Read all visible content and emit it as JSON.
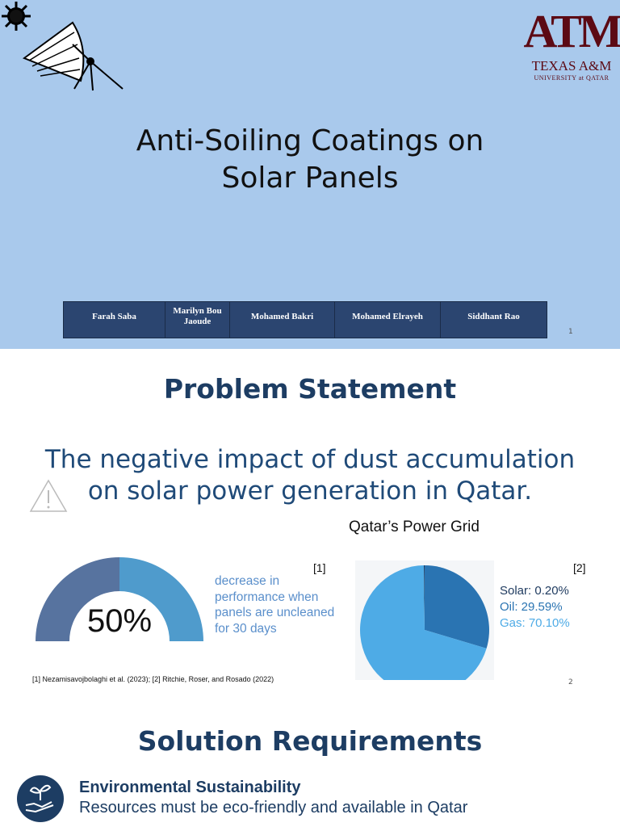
{
  "slide1": {
    "title_lines": [
      "Anti-Soiling Coatings on",
      "Solar Panels"
    ],
    "logo": {
      "mark": "ATM",
      "name": "TEXAS A&M",
      "subtitle": "UNIVERSITY at QATAR"
    },
    "team": [
      "Farah Saba",
      "Marilyn Bou Jaoude",
      "Mohamed Bakri",
      "Mohamed Elrayeh",
      "Siddhant Rao"
    ],
    "page": 1
  },
  "slide2": {
    "title": "Problem Statement",
    "statement_lines": [
      "The negative impact of dust accumulation",
      "on solar power generation in Qatar."
    ],
    "gauge": {
      "value": 50,
      "label": "50%",
      "caption": "decrease in performance when panels are uncleaned for 30 days",
      "ref": "[1]",
      "colors": [
        "#57739f",
        "#4f9bcc"
      ]
    },
    "pie": {
      "title": "Qatar’s Power Grid",
      "ref": "[2]",
      "slices": [
        {
          "label": "Solar: 0.20%",
          "value": 0.2,
          "color": "#1e3a5f"
        },
        {
          "label": "Oil: 29.59%",
          "value": 29.59,
          "color": "#2a74b2"
        },
        {
          "label": "Gas: 70.10%",
          "value": 70.1,
          "color": "#4eabe6"
        }
      ]
    },
    "footnote": "[1] Nezamisavojbolaghi et al. (2023); [2] Ritchie, Roser, and Rosado (2022)",
    "page": 2
  },
  "slide3": {
    "title": "Solution Requirements",
    "items": [
      {
        "heading": "Environmental Sustainability",
        "text": "Resources must be eco-friendly and available in Qatar"
      }
    ]
  }
}
